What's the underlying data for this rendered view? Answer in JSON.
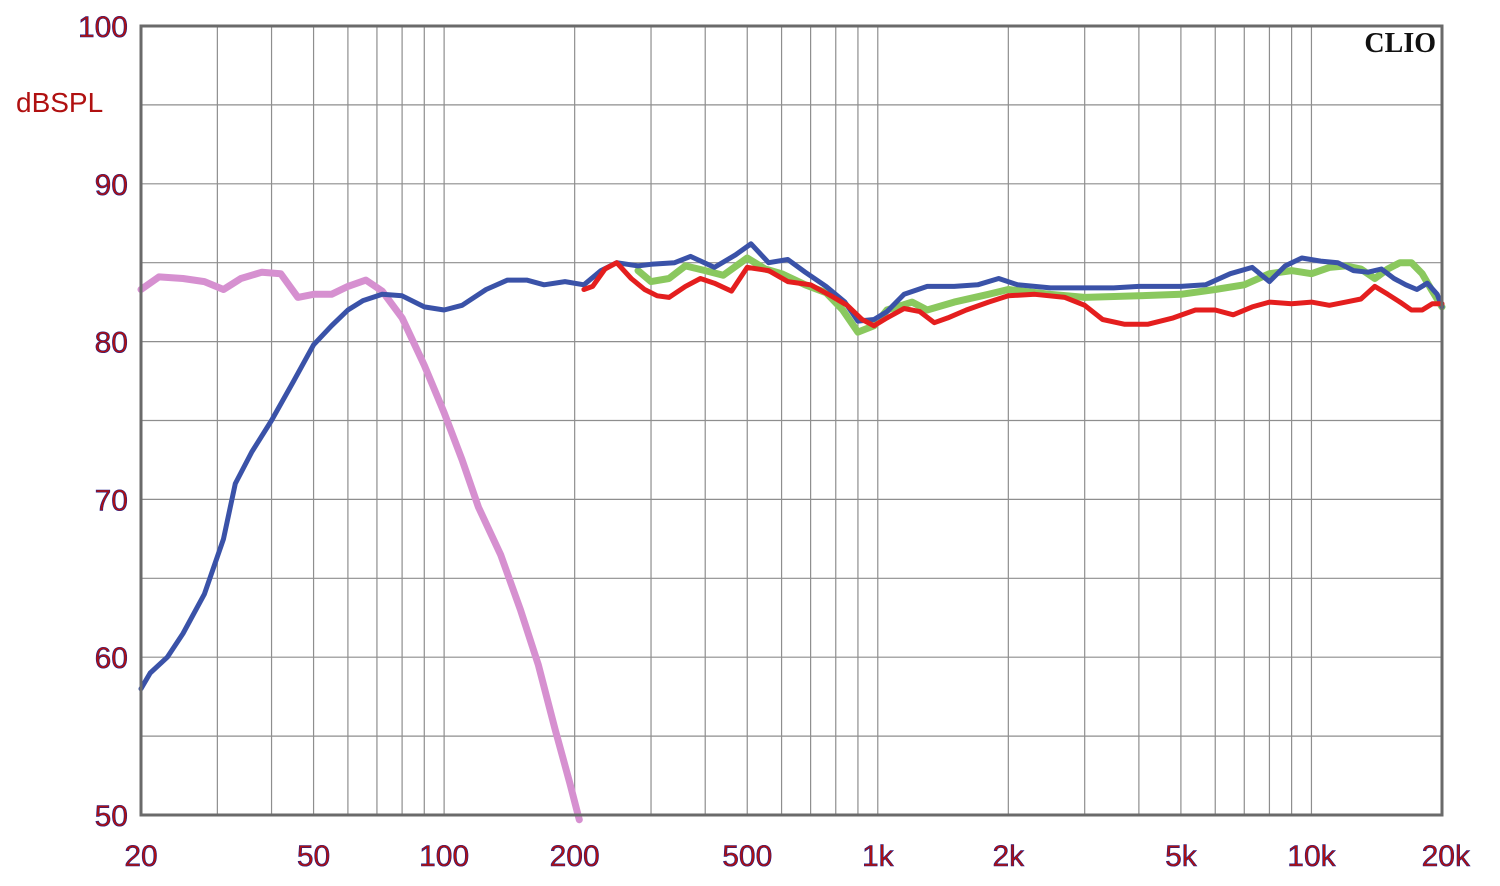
{
  "chart_data": {
    "type": "line",
    "title": "",
    "watermark": "CLIO",
    "ylabel": "dBSPL",
    "xlabel": "",
    "x_scale": "log",
    "xlim": [
      20,
      20000
    ],
    "ylim": [
      50,
      100
    ],
    "grid": true,
    "x_tick_labels": [
      {
        "value": 20,
        "label": "20"
      },
      {
        "value": 50,
        "label": "50"
      },
      {
        "value": 100,
        "label": "100"
      },
      {
        "value": 200,
        "label": "200"
      },
      {
        "value": 500,
        "label": "500"
      },
      {
        "value": 1000,
        "label": "1k"
      },
      {
        "value": 2000,
        "label": "2k"
      },
      {
        "value": 5000,
        "label": "5k"
      },
      {
        "value": 10000,
        "label": "10k"
      },
      {
        "value": 20000,
        "label": "20k"
      }
    ],
    "y_tick_labels": [
      {
        "value": 100,
        "label": "100"
      },
      {
        "value": 90,
        "label": "90"
      },
      {
        "value": 80,
        "label": "80"
      },
      {
        "value": 70,
        "label": "70"
      },
      {
        "value": 60,
        "label": "60"
      },
      {
        "value": 50,
        "label": "50"
      }
    ],
    "series": [
      {
        "color": "#d690d0",
        "width": 7,
        "points": [
          [
            20,
            83.3
          ],
          [
            22,
            84.1
          ],
          [
            25,
            84.0
          ],
          [
            28,
            83.8
          ],
          [
            31,
            83.3
          ],
          [
            34,
            84.0
          ],
          [
            38,
            84.4
          ],
          [
            42,
            84.3
          ],
          [
            46,
            82.8
          ],
          [
            50,
            83.0
          ],
          [
            55,
            83.0
          ],
          [
            60,
            83.5
          ],
          [
            66,
            83.9
          ],
          [
            72,
            83.2
          ],
          [
            80,
            81.5
          ],
          [
            90,
            78.5
          ],
          [
            100,
            75.5
          ],
          [
            110,
            72.5
          ],
          [
            120,
            69.5
          ],
          [
            135,
            66.5
          ],
          [
            150,
            63.0
          ],
          [
            165,
            59.5
          ],
          [
            180,
            55.5
          ],
          [
            195,
            52.0
          ],
          [
            205,
            49.7
          ]
        ]
      },
      {
        "color": "#8ac85e",
        "width": 7,
        "points": [
          [
            280,
            84.5
          ],
          [
            300,
            83.8
          ],
          [
            330,
            84.0
          ],
          [
            360,
            84.8
          ],
          [
            400,
            84.5
          ],
          [
            440,
            84.2
          ],
          [
            500,
            85.3
          ],
          [
            550,
            84.6
          ],
          [
            600,
            84.3
          ],
          [
            680,
            83.6
          ],
          [
            760,
            83.1
          ],
          [
            830,
            82.0
          ],
          [
            900,
            80.6
          ],
          [
            980,
            81.0
          ],
          [
            1050,
            82.0
          ],
          [
            1200,
            82.5
          ],
          [
            1300,
            82.0
          ],
          [
            1500,
            82.5
          ],
          [
            1800,
            83.0
          ],
          [
            2000,
            83.3
          ],
          [
            2500,
            83.0
          ],
          [
            3000,
            82.8
          ],
          [
            4000,
            82.9
          ],
          [
            5000,
            83.0
          ],
          [
            6000,
            83.3
          ],
          [
            7000,
            83.6
          ],
          [
            8000,
            84.3
          ],
          [
            9000,
            84.5
          ],
          [
            10000,
            84.3
          ],
          [
            11000,
            84.7
          ],
          [
            12000,
            84.8
          ],
          [
            13000,
            84.6
          ],
          [
            14000,
            84.0
          ],
          [
            15000,
            84.6
          ],
          [
            16000,
            85.0
          ],
          [
            17000,
            85.0
          ],
          [
            18000,
            84.3
          ],
          [
            19000,
            83.2
          ],
          [
            20000,
            82.2
          ]
        ]
      },
      {
        "color": "#3a52a8",
        "width": 5,
        "points": [
          [
            20,
            58.0
          ],
          [
            21,
            59.0
          ],
          [
            23,
            60.0
          ],
          [
            25,
            61.5
          ],
          [
            28,
            64.0
          ],
          [
            31,
            67.5
          ],
          [
            33,
            71.0
          ],
          [
            36,
            73.0
          ],
          [
            40,
            75.0
          ],
          [
            45,
            77.5
          ],
          [
            50,
            79.8
          ],
          [
            55,
            81.0
          ],
          [
            60,
            82.0
          ],
          [
            65,
            82.6
          ],
          [
            72,
            83.0
          ],
          [
            80,
            82.9
          ],
          [
            90,
            82.2
          ],
          [
            100,
            82.0
          ],
          [
            110,
            82.3
          ],
          [
            125,
            83.3
          ],
          [
            140,
            83.9
          ],
          [
            155,
            83.9
          ],
          [
            170,
            83.6
          ],
          [
            190,
            83.8
          ],
          [
            210,
            83.6
          ],
          [
            230,
            84.5
          ],
          [
            250,
            85.0
          ],
          [
            280,
            84.8
          ],
          [
            300,
            84.9
          ],
          [
            340,
            85.0
          ],
          [
            370,
            85.4
          ],
          [
            420,
            84.7
          ],
          [
            470,
            85.5
          ],
          [
            510,
            86.2
          ],
          [
            560,
            85.0
          ],
          [
            620,
            85.2
          ],
          [
            680,
            84.4
          ],
          [
            760,
            83.5
          ],
          [
            840,
            82.5
          ],
          [
            900,
            81.3
          ],
          [
            980,
            81.4
          ],
          [
            1050,
            81.9
          ],
          [
            1150,
            83.0
          ],
          [
            1300,
            83.5
          ],
          [
            1500,
            83.5
          ],
          [
            1700,
            83.6
          ],
          [
            1900,
            84.0
          ],
          [
            2100,
            83.6
          ],
          [
            2500,
            83.4
          ],
          [
            3000,
            83.4
          ],
          [
            3500,
            83.4
          ],
          [
            4000,
            83.5
          ],
          [
            5000,
            83.5
          ],
          [
            5700,
            83.6
          ],
          [
            6500,
            84.3
          ],
          [
            7300,
            84.7
          ],
          [
            8000,
            83.8
          ],
          [
            8700,
            84.8
          ],
          [
            9500,
            85.3
          ],
          [
            10500,
            85.1
          ],
          [
            11500,
            85.0
          ],
          [
            12500,
            84.5
          ],
          [
            13500,
            84.4
          ],
          [
            14500,
            84.6
          ],
          [
            15500,
            84.0
          ],
          [
            16500,
            83.6
          ],
          [
            17500,
            83.3
          ],
          [
            18500,
            83.7
          ],
          [
            19500,
            83.0
          ],
          [
            20000,
            82.2
          ]
        ]
      },
      {
        "color": "#e41e1e",
        "width": 5,
        "points": [
          [
            210,
            83.3
          ],
          [
            220,
            83.5
          ],
          [
            235,
            84.6
          ],
          [
            250,
            85.0
          ],
          [
            270,
            84.0
          ],
          [
            290,
            83.3
          ],
          [
            310,
            82.9
          ],
          [
            330,
            82.8
          ],
          [
            360,
            83.5
          ],
          [
            390,
            84.0
          ],
          [
            420,
            83.7
          ],
          [
            460,
            83.2
          ],
          [
            500,
            84.7
          ],
          [
            560,
            84.5
          ],
          [
            620,
            83.8
          ],
          [
            700,
            83.6
          ],
          [
            780,
            82.9
          ],
          [
            850,
            82.3
          ],
          [
            920,
            81.4
          ],
          [
            980,
            81.0
          ],
          [
            1050,
            81.5
          ],
          [
            1150,
            82.1
          ],
          [
            1250,
            81.9
          ],
          [
            1350,
            81.2
          ],
          [
            1450,
            81.5
          ],
          [
            1600,
            82.0
          ],
          [
            1800,
            82.5
          ],
          [
            2000,
            82.9
          ],
          [
            2300,
            83.0
          ],
          [
            2700,
            82.8
          ],
          [
            3000,
            82.3
          ],
          [
            3300,
            81.4
          ],
          [
            3700,
            81.1
          ],
          [
            4200,
            81.1
          ],
          [
            4800,
            81.5
          ],
          [
            5400,
            82.0
          ],
          [
            6000,
            82.0
          ],
          [
            6600,
            81.7
          ],
          [
            7300,
            82.2
          ],
          [
            8000,
            82.5
          ],
          [
            9000,
            82.4
          ],
          [
            10000,
            82.5
          ],
          [
            11000,
            82.3
          ],
          [
            12000,
            82.5
          ],
          [
            13000,
            82.7
          ],
          [
            14000,
            83.5
          ],
          [
            15000,
            83.0
          ],
          [
            16000,
            82.5
          ],
          [
            17000,
            82.0
          ],
          [
            18000,
            82.0
          ],
          [
            19000,
            82.4
          ],
          [
            20000,
            82.4
          ]
        ]
      }
    ]
  }
}
